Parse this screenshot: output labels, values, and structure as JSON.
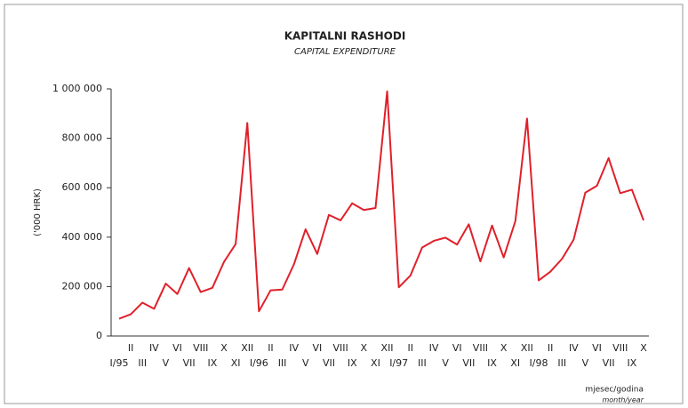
{
  "chart_data": {
    "type": "line",
    "title": "KAPITALNI RASHODI",
    "subtitle": "CAPITAL EXPENDITURE",
    "y_label": "('000 HRK)",
    "x_label": "mjesec/godina",
    "x_label_en": "month/year",
    "categories": [
      "I/95",
      "II",
      "III",
      "IV",
      "V",
      "VI",
      "VII",
      "VIII",
      "IX",
      "X",
      "XI",
      "XII",
      "I/96",
      "II",
      "III",
      "IV",
      "V",
      "VI",
      "VII",
      "VIII",
      "IX",
      "X",
      "XI",
      "XII",
      "I/97",
      "II",
      "III",
      "IV",
      "V",
      "VI",
      "VII",
      "VIII",
      "IX",
      "X",
      "XI",
      "XII",
      "I/98",
      "II",
      "III",
      "IV",
      "V",
      "VI",
      "VII",
      "VIII",
      "IX",
      "X"
    ],
    "series": [
      {
        "name": "Capital expenditure",
        "color": "#e0202a",
        "values": [
          70000,
          88000,
          135000,
          110000,
          212000,
          170000,
          275000,
          178000,
          195000,
          300000,
          372000,
          862000,
          100000,
          185000,
          188000,
          290000,
          432000,
          332000,
          490000,
          468000,
          537000,
          510000,
          518000,
          990000,
          197000,
          245000,
          358000,
          385000,
          398000,
          370000,
          452000,
          302000,
          447000,
          318000,
          465000,
          880000,
          225000,
          260000,
          312000,
          390000,
          580000,
          608000,
          720000,
          578000,
          592000,
          468000
        ]
      }
    ],
    "ylim": [
      0,
      1000000
    ],
    "yticks": [
      0,
      {
        "value": 200000,
        "label": "200 000"
      },
      {
        "value": 400000,
        "label": "400 000"
      },
      {
        "value": 600000,
        "label": "600 000"
      },
      {
        "value": 800000,
        "label": "800 000"
      },
      {
        "value": 1000000,
        "label": "1 000 000"
      }
    ],
    "grid": false
  }
}
